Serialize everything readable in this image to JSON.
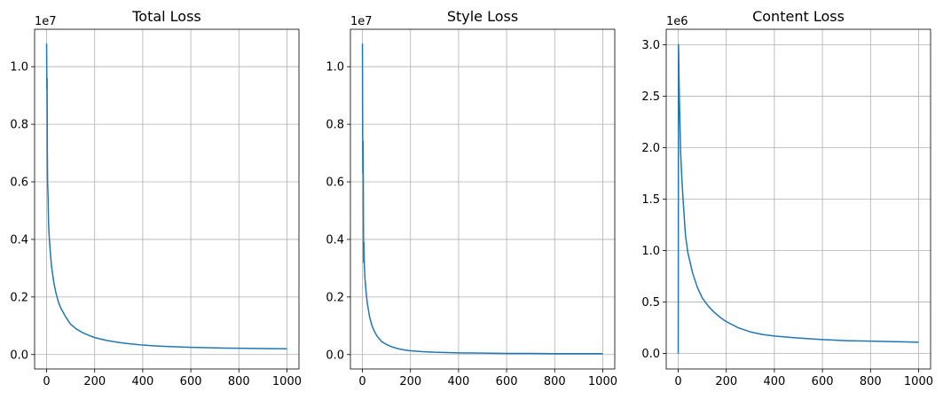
{
  "chart_data": [
    {
      "type": "line",
      "title": "Total Loss",
      "offset_label": "1e7",
      "xlim": [
        -50,
        1050
      ],
      "ylim": [
        -0.05,
        1.13
      ],
      "x_ticks": [
        0,
        200,
        400,
        600,
        800,
        1000
      ],
      "x_tick_labels": [
        "0",
        "200",
        "400",
        "600",
        "800",
        "1000"
      ],
      "y_ticks": [
        0.0,
        0.2,
        0.4,
        0.6,
        0.8,
        1.0
      ],
      "y_tick_labels": [
        "0.0",
        "0.2",
        "0.4",
        "0.6",
        "0.8",
        "1.0"
      ],
      "grid": true,
      "line_color": "#1f77b4",
      "series": [
        {
          "x": [
            0,
            1,
            2,
            3,
            4,
            6,
            8,
            10,
            15,
            20,
            30,
            40,
            50,
            60,
            80,
            100,
            125,
            150,
            175,
            200,
            250,
            300,
            350,
            400,
            450,
            500,
            600,
            700,
            800,
            900,
            1000
          ],
          "values": [
            1.08,
            0.92,
            0.96,
            0.7,
            0.6,
            0.55,
            0.46,
            0.42,
            0.36,
            0.31,
            0.25,
            0.21,
            0.18,
            0.16,
            0.13,
            0.105,
            0.088,
            0.076,
            0.067,
            0.059,
            0.049,
            0.042,
            0.037,
            0.033,
            0.03,
            0.028,
            0.025,
            0.023,
            0.022,
            0.021,
            0.02
          ]
        }
      ]
    },
    {
      "type": "line",
      "title": "Style Loss",
      "offset_label": "1e7",
      "xlim": [
        -50,
        1050
      ],
      "ylim": [
        -0.05,
        1.13
      ],
      "x_ticks": [
        0,
        200,
        400,
        600,
        800,
        1000
      ],
      "x_tick_labels": [
        "0",
        "200",
        "400",
        "600",
        "800",
        "1000"
      ],
      "y_ticks": [
        0.0,
        0.2,
        0.4,
        0.6,
        0.8,
        1.0
      ],
      "y_tick_labels": [
        "0.0",
        "0.2",
        "0.4",
        "0.6",
        "0.8",
        "1.0"
      ],
      "grid": true,
      "line_color": "#1f77b4",
      "series": [
        {
          "x": [
            0,
            1,
            2,
            3,
            4,
            5,
            6,
            8,
            10,
            15,
            20,
            30,
            40,
            50,
            60,
            80,
            100,
            125,
            150,
            175,
            200,
            250,
            300,
            350,
            400,
            500,
            600,
            700,
            800,
            900,
            1000
          ],
          "values": [
            1.08,
            0.75,
            0.63,
            0.74,
            0.5,
            0.32,
            0.39,
            0.31,
            0.27,
            0.22,
            0.18,
            0.13,
            0.1,
            0.08,
            0.065,
            0.045,
            0.035,
            0.026,
            0.02,
            0.016,
            0.013,
            0.01,
            0.008,
            0.007,
            0.006,
            0.005,
            0.004,
            0.004,
            0.003,
            0.003,
            0.003
          ]
        }
      ]
    },
    {
      "type": "line",
      "title": "Content Loss",
      "offset_label": "1e6",
      "xlim": [
        -50,
        1050
      ],
      "ylim": [
        -0.15,
        3.15
      ],
      "x_ticks": [
        0,
        200,
        400,
        600,
        800,
        1000
      ],
      "x_tick_labels": [
        "0",
        "200",
        "400",
        "600",
        "800",
        "1000"
      ],
      "y_ticks": [
        0.0,
        0.5,
        1.0,
        1.5,
        2.0,
        2.5,
        3.0
      ],
      "y_tick_labels": [
        "0.0",
        "0.5",
        "1.0",
        "1.5",
        "2.0",
        "2.5",
        "3.0"
      ],
      "grid": true,
      "line_color": "#1f77b4",
      "series": [
        {
          "x": [
            0,
            1,
            2,
            3,
            5,
            8,
            10,
            15,
            20,
            30,
            40,
            50,
            60,
            80,
            100,
            125,
            150,
            175,
            200,
            250,
            300,
            350,
            400,
            450,
            500,
            600,
            700,
            800,
            900,
            1000
          ],
          "values": [
            0.0,
            3.0,
            2.9,
            2.7,
            2.45,
            2.15,
            1.95,
            1.7,
            1.5,
            1.15,
            0.98,
            0.88,
            0.78,
            0.64,
            0.54,
            0.46,
            0.4,
            0.35,
            0.31,
            0.25,
            0.21,
            0.185,
            0.17,
            0.16,
            0.15,
            0.135,
            0.125,
            0.12,
            0.115,
            0.11
          ]
        }
      ]
    }
  ]
}
